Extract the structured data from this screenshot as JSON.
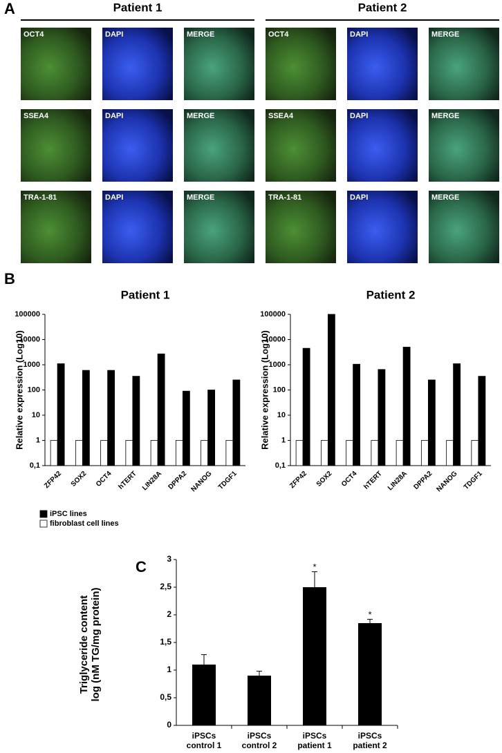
{
  "panel_a": {
    "label": "A",
    "patients": [
      {
        "title": "Patient 1",
        "rows": [
          [
            "OCT4",
            "DAPI",
            "MERGE"
          ],
          [
            "SSEA4",
            "DAPI",
            "MERGE"
          ],
          [
            "TRA-1-81",
            "DAPI",
            "MERGE"
          ]
        ]
      },
      {
        "title": "Patient 2",
        "rows": [
          [
            "OCT4",
            "DAPI",
            "MERGE"
          ],
          [
            "SSEA4",
            "DAPI",
            "MERGE"
          ],
          [
            "TRA-1-81",
            "DAPI",
            "MERGE"
          ]
        ]
      }
    ]
  },
  "panel_b_label": "B",
  "panel_c_label": "C",
  "chart_data": [
    {
      "type": "bar",
      "title": "Patient 1",
      "y_label": "Relative expression (Log10)",
      "log": true,
      "categories": [
        "ZFP42",
        "SOX2",
        "OCT4",
        "hTERT",
        "LIN28A",
        "DPPA2",
        "NANOG",
        "TDGF1"
      ],
      "series": [
        {
          "name": "fibroblast cell lines",
          "color": "#ffffff",
          "values": [
            1,
            1,
            1,
            1,
            1,
            1,
            1,
            1
          ]
        },
        {
          "name": "iPSC lines",
          "color": "#000000",
          "values": [
            1100,
            600,
            600,
            350,
            2700,
            90,
            100,
            250
          ]
        }
      ],
      "ylim": [
        0.1,
        100000
      ],
      "yticks": [
        {
          "value": 0.1,
          "label": "0,1"
        },
        1,
        10,
        100,
        1000,
        10000,
        100000
      ]
    },
    {
      "type": "bar",
      "title": "Patient 2",
      "y_label": "Relative expression (Log10)",
      "log": true,
      "categories": [
        "ZFP42",
        "SOX2",
        "OCT4",
        "hTERT",
        "LIN28A",
        "DPPA2",
        "NANOG",
        "TDGF1"
      ],
      "series": [
        {
          "color": "#ffffff",
          "values": [
            1,
            1,
            1,
            1,
            1,
            1,
            1,
            1
          ]
        },
        {
          "color": "#000000",
          "values": [
            4500,
            100000,
            1050,
            650,
            5000,
            250,
            1100,
            350
          ]
        }
      ],
      "ylim": [
        0.1,
        100000
      ],
      "yticks": [
        {
          "value": 0.1,
          "label": "0,1"
        },
        1,
        10,
        100,
        1000,
        10000,
        100000
      ]
    },
    {
      "type": "bar",
      "y_label": "Triglyceride content\nlog (nM TG/mg protein)",
      "categories": [
        "iPSCs\ncontrol 1",
        "iPSCs\ncontrol 2",
        "iPSCs\npatient 1",
        "iPSCs\npatient 2"
      ],
      "values": [
        1.1,
        0.9,
        2.5,
        1.85
      ],
      "errors": [
        0.18,
        0.08,
        0.28,
        0.07
      ],
      "significance": [
        null,
        null,
        "*",
        "*"
      ],
      "color": "#000000",
      "ylim": [
        0,
        3
      ],
      "yticks": [
        0,
        {
          "value": 0.5,
          "label": "0,5"
        },
        1,
        {
          "value": 1.5,
          "label": "1,5"
        },
        2,
        {
          "value": 2.5,
          "label": "2,5"
        },
        3
      ]
    }
  ]
}
